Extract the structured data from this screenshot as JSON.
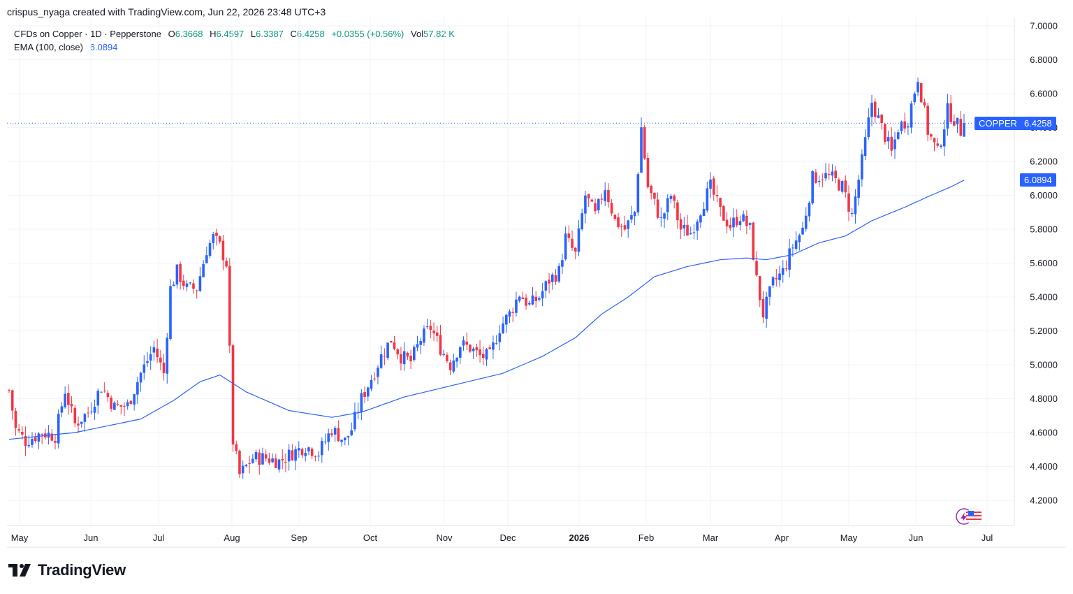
{
  "header": {
    "credit": "crispus_nyaga created with TradingView.com, Jun 22, 2026 23:48 UTC+3"
  },
  "legend": {
    "symbol": "CFDs on Copper · 1D · Pepperstone",
    "open_label": "O",
    "open": "6.3668",
    "high_label": "H",
    "high": "6.4597",
    "low_label": "L",
    "low": "6.3387",
    "close_label": "C",
    "close": "6.4258",
    "change": "+0.0355 (+0.56%)",
    "vol_label": "Vol",
    "vol": "57.82 K",
    "ema_label": "EMA (100, close)",
    "ema_value": "6.0894"
  },
  "price_labels": {
    "symbol_tag": "COPPER",
    "last_price": "6.4258",
    "ema_price": "6.0894"
  },
  "brand": {
    "name": "TradingView"
  },
  "colors": {
    "up": "#2962ff",
    "down": "#f23645",
    "ema": "#2962ff",
    "grid": "#f0f3fa",
    "text": "#131722",
    "green": "#089981"
  },
  "chart_data": {
    "type": "candlestick",
    "y_ticks": [
      "7.0000",
      "6.8000",
      "6.6000",
      "6.4000",
      "6.2000",
      "6.0000",
      "5.8000",
      "5.6000",
      "5.4000",
      "5.2000",
      "5.0000",
      "4.8000",
      "4.6000",
      "4.4000",
      "4.2000"
    ],
    "ylim": [
      4.2,
      7.0
    ],
    "x_ticks": [
      "May",
      "Jun",
      "Jul",
      "Aug",
      "Sep",
      "Oct",
      "Nov",
      "Dec",
      "2026",
      "Feb",
      "Mar",
      "Apr",
      "May",
      "Jun",
      "Jul"
    ],
    "price_path": [
      {
        "d": 0,
        "p": 4.85
      },
      {
        "d": 2,
        "p": 4.62
      },
      {
        "d": 5,
        "p": 4.55
      },
      {
        "d": 10,
        "p": 4.6
      },
      {
        "d": 14,
        "p": 4.58
      },
      {
        "d": 17,
        "p": 4.85
      },
      {
        "d": 20,
        "p": 4.65
      },
      {
        "d": 24,
        "p": 4.72
      },
      {
        "d": 28,
        "p": 4.87
      },
      {
        "d": 32,
        "p": 4.75
      },
      {
        "d": 36,
        "p": 4.76
      },
      {
        "d": 40,
        "p": 4.95
      },
      {
        "d": 44,
        "p": 5.1
      },
      {
        "d": 47,
        "p": 4.95
      },
      {
        "d": 49,
        "p": 5.45
      },
      {
        "d": 51,
        "p": 5.55
      },
      {
        "d": 54,
        "p": 5.45
      },
      {
        "d": 57,
        "p": 5.45
      },
      {
        "d": 60,
        "p": 5.68
      },
      {
        "d": 62,
        "p": 5.75
      },
      {
        "d": 64,
        "p": 5.7
      },
      {
        "d": 66,
        "p": 5.6
      },
      {
        "d": 68,
        "p": 4.55
      },
      {
        "d": 70,
        "p": 4.35
      },
      {
        "d": 74,
        "p": 4.45
      },
      {
        "d": 78,
        "p": 4.45
      },
      {
        "d": 82,
        "p": 4.43
      },
      {
        "d": 86,
        "p": 4.48
      },
      {
        "d": 90,
        "p": 4.52
      },
      {
        "d": 94,
        "p": 4.48
      },
      {
        "d": 98,
        "p": 4.62
      },
      {
        "d": 102,
        "p": 4.55
      },
      {
        "d": 104,
        "p": 4.62
      },
      {
        "d": 107,
        "p": 4.8
      },
      {
        "d": 110,
        "p": 4.92
      },
      {
        "d": 113,
        "p": 5.05
      },
      {
        "d": 116,
        "p": 5.15
      },
      {
        "d": 119,
        "p": 5.05
      },
      {
        "d": 122,
        "p": 5.02
      },
      {
        "d": 125,
        "p": 5.15
      },
      {
        "d": 128,
        "p": 5.22
      },
      {
        "d": 131,
        "p": 5.1
      },
      {
        "d": 134,
        "p": 5.0
      },
      {
        "d": 137,
        "p": 5.12
      },
      {
        "d": 140,
        "p": 5.1
      },
      {
        "d": 143,
        "p": 5.05
      },
      {
        "d": 146,
        "p": 5.05
      },
      {
        "d": 149,
        "p": 5.22
      },
      {
        "d": 152,
        "p": 5.3
      },
      {
        "d": 155,
        "p": 5.42
      },
      {
        "d": 158,
        "p": 5.35
      },
      {
        "d": 161,
        "p": 5.4
      },
      {
        "d": 164,
        "p": 5.5
      },
      {
        "d": 167,
        "p": 5.55
      },
      {
        "d": 169,
        "p": 5.75
      },
      {
        "d": 172,
        "p": 5.65
      },
      {
        "d": 175,
        "p": 6.0
      },
      {
        "d": 178,
        "p": 5.88
      },
      {
        "d": 181,
        "p": 6.05
      },
      {
        "d": 184,
        "p": 5.85
      },
      {
        "d": 187,
        "p": 5.8
      },
      {
        "d": 190,
        "p": 5.9
      },
      {
        "d": 192,
        "p": 6.4
      },
      {
        "d": 194,
        "p": 6.05
      },
      {
        "d": 196,
        "p": 5.95
      },
      {
        "d": 198,
        "p": 5.85
      },
      {
        "d": 201,
        "p": 6.0
      },
      {
        "d": 204,
        "p": 5.8
      },
      {
        "d": 207,
        "p": 5.78
      },
      {
        "d": 210,
        "p": 5.92
      },
      {
        "d": 213,
        "p": 6.05
      },
      {
        "d": 216,
        "p": 5.9
      },
      {
        "d": 219,
        "p": 5.82
      },
      {
        "d": 222,
        "p": 5.88
      },
      {
        "d": 225,
        "p": 5.8
      },
      {
        "d": 227,
        "p": 5.5
      },
      {
        "d": 229,
        "p": 5.3
      },
      {
        "d": 232,
        "p": 5.48
      },
      {
        "d": 235,
        "p": 5.55
      },
      {
        "d": 238,
        "p": 5.7
      },
      {
        "d": 241,
        "p": 5.8
      },
      {
        "d": 244,
        "p": 6.1
      },
      {
        "d": 247,
        "p": 6.12
      },
      {
        "d": 250,
        "p": 6.1
      },
      {
        "d": 253,
        "p": 6.05
      },
      {
        "d": 256,
        "p": 5.88
      },
      {
        "d": 259,
        "p": 6.2
      },
      {
        "d": 262,
        "p": 6.55
      },
      {
        "d": 265,
        "p": 6.4
      },
      {
        "d": 268,
        "p": 6.25
      },
      {
        "d": 270,
        "p": 6.4
      },
      {
        "d": 273,
        "p": 6.45
      },
      {
        "d": 276,
        "p": 6.7
      },
      {
        "d": 279,
        "p": 6.38
      },
      {
        "d": 282,
        "p": 6.25
      },
      {
        "d": 285,
        "p": 6.5
      },
      {
        "d": 287,
        "p": 6.45
      },
      {
        "d": 289,
        "p": 6.38
      },
      {
        "d": 290,
        "p": 6.4258
      }
    ],
    "ema_path": [
      {
        "d": 0,
        "p": 4.56
      },
      {
        "d": 20,
        "p": 4.6
      },
      {
        "d": 40,
        "p": 4.68
      },
      {
        "d": 50,
        "p": 4.79
      },
      {
        "d": 58,
        "p": 4.9
      },
      {
        "d": 64,
        "p": 4.94
      },
      {
        "d": 72,
        "p": 4.84
      },
      {
        "d": 85,
        "p": 4.73
      },
      {
        "d": 98,
        "p": 4.69
      },
      {
        "d": 107,
        "p": 4.72
      },
      {
        "d": 120,
        "p": 4.81
      },
      {
        "d": 135,
        "p": 4.88
      },
      {
        "d": 150,
        "p": 4.95
      },
      {
        "d": 162,
        "p": 5.05
      },
      {
        "d": 172,
        "p": 5.16
      },
      {
        "d": 180,
        "p": 5.3
      },
      {
        "d": 188,
        "p": 5.4
      },
      {
        "d": 196,
        "p": 5.52
      },
      {
        "d": 206,
        "p": 5.58
      },
      {
        "d": 216,
        "p": 5.62
      },
      {
        "d": 224,
        "p": 5.63
      },
      {
        "d": 230,
        "p": 5.62
      },
      {
        "d": 238,
        "p": 5.65
      },
      {
        "d": 246,
        "p": 5.72
      },
      {
        "d": 254,
        "p": 5.76
      },
      {
        "d": 262,
        "p": 5.85
      },
      {
        "d": 272,
        "p": 5.93
      },
      {
        "d": 280,
        "p": 6.0
      },
      {
        "d": 286,
        "p": 6.05
      },
      {
        "d": 290,
        "p": 6.0894
      }
    ]
  }
}
